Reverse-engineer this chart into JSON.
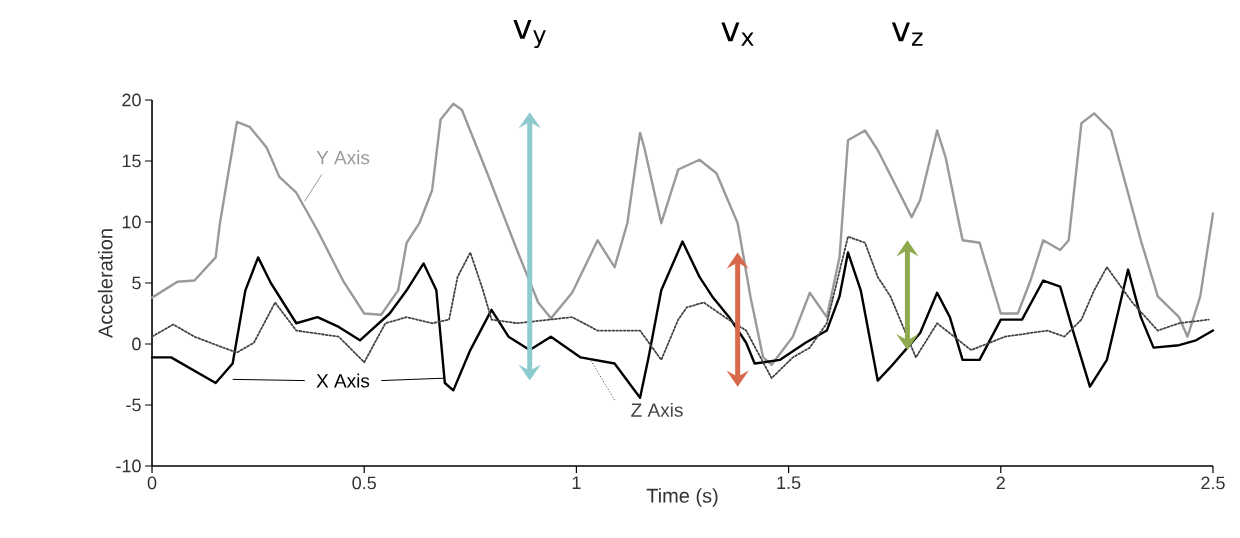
{
  "chart_data": {
    "type": "line",
    "xlabel": "Time (s)",
    "ylabel": "Acceleration",
    "xlim": [
      0,
      2.5
    ],
    "ylim": [
      -10,
      20
    ],
    "xticks": [
      0,
      0.5,
      1,
      1.5,
      2,
      2.5
    ],
    "yticks": [
      -10,
      -5,
      0,
      5,
      10,
      15,
      20
    ],
    "grid": false,
    "series": [
      {
        "name": "Y Axis",
        "color": "#9a9a9a",
        "line_style": "solid",
        "x": [
          0,
          0.06,
          0.1,
          0.15,
          0.16,
          0.2,
          0.23,
          0.27,
          0.3,
          0.34,
          0.39,
          0.45,
          0.5,
          0.54,
          0.58,
          0.6,
          0.63,
          0.66,
          0.68,
          0.71,
          0.73,
          0.79,
          0.86,
          0.91,
          0.94,
          0.99,
          1.05,
          1.09,
          1.12,
          1.15,
          1.16,
          1.2,
          1.24,
          1.29,
          1.33,
          1.38,
          1.41,
          1.44,
          1.46,
          1.51,
          1.55,
          1.59,
          1.62,
          1.64,
          1.68,
          1.71,
          1.79,
          1.81,
          1.85,
          1.87,
          1.91,
          1.95,
          2.0,
          2.04,
          2.07,
          2.1,
          2.14,
          2.16,
          2.19,
          2.22,
          2.26,
          2.33,
          2.37,
          2.42,
          2.44,
          2.47,
          2.5
        ],
        "values": [
          3.8,
          5.1,
          5.2,
          7.1,
          9.9,
          18.2,
          17.8,
          16.1,
          13.7,
          12.4,
          9.3,
          5.2,
          2.5,
          2.4,
          4.4,
          8.3,
          9.9,
          12.6,
          18.4,
          19.7,
          19.2,
          14.0,
          7.7,
          3.4,
          2.1,
          4.2,
          8.5,
          6.3,
          9.9,
          17.3,
          16.1,
          9.9,
          14.3,
          15.1,
          14.0,
          9.9,
          3.9,
          -1.1,
          -1.7,
          0.6,
          4.2,
          2.2,
          7.1,
          16.7,
          17.5,
          15.9,
          10.4,
          11.8,
          17.5,
          15.3,
          8.5,
          8.3,
          2.5,
          2.5,
          5.2,
          8.5,
          7.7,
          8.5,
          18.1,
          18.9,
          17.5,
          8.5,
          3.9,
          2.2,
          0.6,
          3.9,
          10.7
        ]
      },
      {
        "name": "X Axis",
        "color": "#000000",
        "line_style": "solid",
        "x": [
          0,
          0.045,
          0.15,
          0.19,
          0.22,
          0.25,
          0.28,
          0.34,
          0.39,
          0.44,
          0.49,
          0.56,
          0.6,
          0.64,
          0.67,
          0.69,
          0.71,
          0.75,
          0.8,
          0.84,
          0.89,
          0.94,
          1.01,
          1.09,
          1.15,
          1.17,
          1.2,
          1.25,
          1.29,
          1.32,
          1.36,
          1.4,
          1.42,
          1.48,
          1.54,
          1.59,
          1.62,
          1.64,
          1.67,
          1.71,
          1.74,
          1.78,
          1.81,
          1.85,
          1.88,
          1.91,
          1.95,
          2.0,
          2.05,
          2.1,
          2.14,
          2.17,
          2.21,
          2.25,
          2.3,
          2.33,
          2.36,
          2.42,
          2.46,
          2.5
        ],
        "values": [
          -1.1,
          -1.1,
          -3.2,
          -1.6,
          4.4,
          7.1,
          5.0,
          1.7,
          2.2,
          1.4,
          0.3,
          2.5,
          4.4,
          6.6,
          4.4,
          -3.2,
          -3.8,
          -0.5,
          2.8,
          0.6,
          -0.5,
          0.6,
          -1.1,
          -1.6,
          -4.4,
          -1.1,
          4.4,
          8.4,
          5.5,
          3.9,
          2.2,
          0.1,
          -1.6,
          -1.3,
          0.1,
          1.1,
          3.9,
          7.5,
          4.4,
          -3.0,
          -1.9,
          -0.3,
          0.9,
          4.2,
          2.2,
          -1.3,
          -1.3,
          2.0,
          2.0,
          5.2,
          4.7,
          1.1,
          -3.5,
          -1.3,
          6.1,
          2.2,
          -0.3,
          -0.1,
          0.3,
          1.1
        ]
      },
      {
        "name": "Z Axis",
        "color": "#444444",
        "line_style": "dotted",
        "x": [
          0,
          0.05,
          0.1,
          0.16,
          0.2,
          0.24,
          0.29,
          0.34,
          0.38,
          0.44,
          0.5,
          0.55,
          0.6,
          0.66,
          0.7,
          0.72,
          0.75,
          0.78,
          0.8,
          0.86,
          0.99,
          1.05,
          1.15,
          1.2,
          1.24,
          1.26,
          1.3,
          1.35,
          1.4,
          1.46,
          1.51,
          1.55,
          1.59,
          1.64,
          1.68,
          1.71,
          1.74,
          1.8,
          1.85,
          1.93,
          2.01,
          2.11,
          2.15,
          2.19,
          2.22,
          2.25,
          2.31,
          2.37,
          2.42,
          2.49
        ],
        "values": [
          0.6,
          1.6,
          0.6,
          -0.2,
          -0.7,
          0.1,
          3.4,
          1.1,
          0.9,
          0.6,
          -1.5,
          1.7,
          2.2,
          1.7,
          2.0,
          5.5,
          7.5,
          4.4,
          2.0,
          1.7,
          2.2,
          1.1,
          1.1,
          -1.3,
          2.0,
          3.0,
          3.4,
          2.2,
          1.1,
          -2.8,
          -1.1,
          -0.3,
          1.7,
          8.8,
          8.3,
          5.5,
          3.9,
          -1.1,
          1.7,
          -0.5,
          0.6,
          1.1,
          0.6,
          2.0,
          4.4,
          6.3,
          3.4,
          1.1,
          1.7,
          2.0
        ]
      }
    ],
    "annotations": [
      "v$_{y}$",
      "v$_{x}$",
      "v$_{z}$"
    ]
  }
}
